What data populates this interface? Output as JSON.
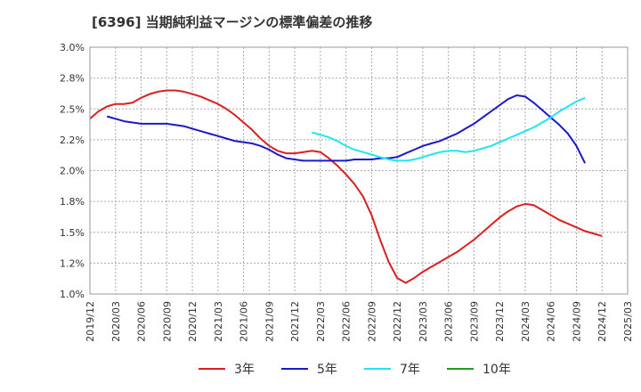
{
  "chart_data": {
    "type": "line",
    "title": "[6396]  当期純利益マージンの標準偏差の推移",
    "xlabel": "",
    "ylabel": "",
    "ylim": [
      1.0,
      3.0
    ],
    "y_ticks": [
      "1.0%",
      "1.2%",
      "1.5%",
      "1.8%",
      "2.0%",
      "2.2%",
      "2.5%",
      "2.8%",
      "3.0%"
    ],
    "y_tick_values": [
      1.0,
      1.25,
      1.5,
      1.75,
      2.0,
      2.25,
      2.5,
      2.75,
      3.0
    ],
    "x_ticks": [
      "2019/12",
      "2020/03",
      "2020/06",
      "2020/09",
      "2020/12",
      "2021/03",
      "2021/06",
      "2021/09",
      "2021/12",
      "2022/03",
      "2022/06",
      "2022/09",
      "2022/12",
      "2023/03",
      "2023/06",
      "2023/09",
      "2023/12",
      "2024/03",
      "2024/06",
      "2024/09",
      "2024/12",
      "2025/03"
    ],
    "grid": true,
    "legend_position": "bottom",
    "series": [
      {
        "name": "3年",
        "color": "#dd1f1f",
        "start_index": 0,
        "values": [
          2.42,
          2.48,
          2.52,
          2.54,
          2.54,
          2.55,
          2.59,
          2.62,
          2.64,
          2.65,
          2.65,
          2.64,
          2.62,
          2.6,
          2.57,
          2.54,
          2.5,
          2.45,
          2.39,
          2.33,
          2.26,
          2.2,
          2.16,
          2.14,
          2.14,
          2.15,
          2.16,
          2.15,
          2.1,
          2.04,
          1.97,
          1.89,
          1.79,
          1.64,
          1.44,
          1.26,
          1.13,
          1.09,
          1.13,
          1.18,
          1.22,
          1.26,
          1.3,
          1.34,
          1.39,
          1.44,
          1.5,
          1.56,
          1.62,
          1.67,
          1.71,
          1.73,
          1.72,
          1.68,
          1.64,
          1.6,
          1.57,
          1.54,
          1.51,
          1.49,
          1.47
        ]
      },
      {
        "name": "5年",
        "color": "#1a1acc",
        "start_index": 2,
        "values": [
          2.44,
          2.42,
          2.4,
          2.39,
          2.38,
          2.38,
          2.38,
          2.38,
          2.37,
          2.36,
          2.34,
          2.32,
          2.3,
          2.28,
          2.26,
          2.24,
          2.23,
          2.22,
          2.2,
          2.17,
          2.13,
          2.1,
          2.09,
          2.08,
          2.08,
          2.08,
          2.08,
          2.08,
          2.08,
          2.09,
          2.09,
          2.09,
          2.1,
          2.1,
          2.11,
          2.14,
          2.17,
          2.2,
          2.22,
          2.24,
          2.27,
          2.3,
          2.34,
          2.38,
          2.43,
          2.48,
          2.53,
          2.58,
          2.61,
          2.6,
          2.55,
          2.49,
          2.43,
          2.37,
          2.3,
          2.2,
          2.06
        ]
      },
      {
        "name": "7年",
        "color": "#1ee8ee",
        "start_index": 26,
        "values": [
          2.31,
          2.29,
          2.27,
          2.24,
          2.2,
          2.17,
          2.15,
          2.13,
          2.11,
          2.09,
          2.08,
          2.08,
          2.09,
          2.11,
          2.13,
          2.15,
          2.16,
          2.16,
          2.15,
          2.16,
          2.18,
          2.2,
          2.23,
          2.26,
          2.29,
          2.32,
          2.35,
          2.39,
          2.43,
          2.48,
          2.52,
          2.56,
          2.59
        ]
      },
      {
        "name": "10年",
        "color": "#229922",
        "start_index": 0,
        "values": []
      }
    ]
  }
}
